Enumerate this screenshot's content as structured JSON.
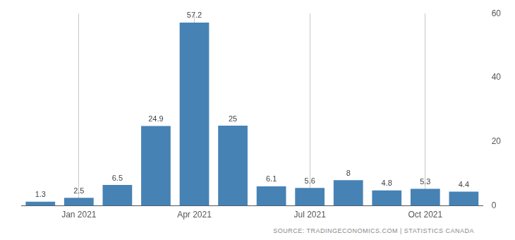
{
  "chart_data": {
    "type": "bar",
    "categories": [
      null,
      "Jan 2021",
      null,
      null,
      "Apr 2021",
      null,
      null,
      "Jul 2021",
      null,
      null,
      "Oct 2021",
      null
    ],
    "values": [
      1.3,
      2.5,
      6.5,
      24.9,
      57.2,
      25,
      6.1,
      5.6,
      8,
      4.8,
      5.3,
      4.4
    ],
    "color": "#4682b4",
    "ylim": [
      0,
      60
    ],
    "yticks": [
      0,
      20,
      40,
      60
    ],
    "grid": true,
    "data_labels": true,
    "source": "SOURCE: TRADINGECONOMICS.COM | STATISTICS CANADA"
  }
}
